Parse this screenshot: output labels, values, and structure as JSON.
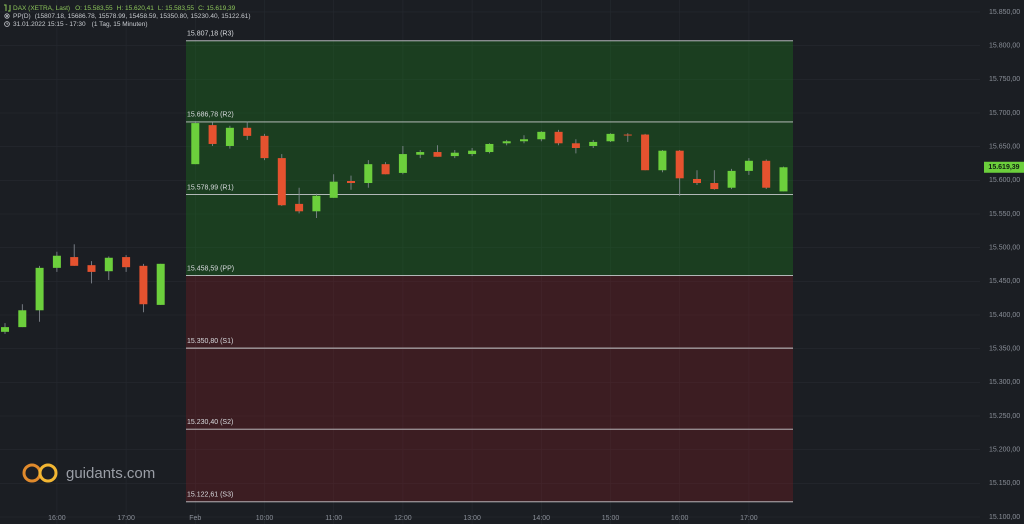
{
  "chart_data": {
    "type": "candlestick",
    "title": "DAX (XETRA, Last)",
    "ohlc": [
      "O: 15.583,55",
      "H: 15.620,41",
      "L: 15.583,55",
      "C: 15.619,39"
    ],
    "indicator": "PP(D)",
    "indicator_values": "(15807.18, 15686.78, 15578.99, 15458.59, 15350.80, 15230.40, 15122.61)",
    "period": "31.01.2022 15:15 - 17:30",
    "interval": "(1 Tag, 15 Minuten)",
    "watermark": "guidants.com",
    "categories": [
      null,
      null,
      null,
      "16:00",
      null,
      null,
      null,
      "17:00",
      null,
      null,
      "Feb",
      null,
      null,
      null,
      "10:00",
      null,
      null,
      null,
      "11:00",
      null,
      null,
      null,
      "12:00",
      null,
      null,
      null,
      "13:00",
      null,
      null,
      null,
      "14:00",
      null,
      null,
      null,
      "15:00",
      null,
      null,
      null,
      "16:00",
      null,
      null,
      null,
      "17:00",
      null,
      null
    ],
    "open": [
      15375,
      15382,
      15407,
      15470,
      15486,
      15474,
      15465,
      15486,
      15473,
      15415,
      15624,
      15682,
      15651,
      15678,
      15666,
      15633,
      15565,
      15554,
      15574,
      15599,
      15596,
      15624,
      15611,
      15638,
      15642,
      15636,
      15639,
      15642,
      15655,
      15658,
      15661,
      15672,
      15655,
      15651,
      15658,
      15668,
      15668,
      15615,
      15644,
      15602,
      15596,
      15589,
      15614,
      15629,
      15583.55
    ],
    "high": [
      15388,
      15416,
      15473,
      15494,
      15505,
      15480,
      15487,
      15489,
      15476,
      15476,
      15688,
      15686,
      15681,
      15687,
      15669,
      15639,
      15589,
      15580,
      15609,
      15607,
      15630,
      15627,
      15651,
      15645,
      15652,
      15645,
      15648,
      15655,
      15660,
      15667,
      15673,
      15675,
      15661,
      15660,
      15670,
      15670,
      15669,
      15645,
      15645,
      15615,
      15615,
      15617,
      15633,
      15631,
      15620.41
    ],
    "low": [
      15372,
      15382,
      15390,
      15464,
      15473,
      15447,
      15452,
      15464,
      15404,
      15415,
      15624,
      15651,
      15647,
      15660,
      15630,
      15562,
      15551,
      15544,
      15574,
      15586,
      15589,
      15609,
      15609,
      15633,
      15635,
      15633,
      15636,
      15640,
      15652,
      15655,
      15658,
      15652,
      15640,
      15648,
      15657,
      15657,
      15615,
      15612,
      15577,
      15593,
      15586,
      15587,
      15608,
      15587,
      15583.55
    ],
    "close": [
      15382,
      15407,
      15470,
      15488,
      15473,
      15464,
      15485,
      15471,
      15416,
      15476,
      15685,
      15654,
      15678,
      15666,
      15633,
      15563,
      15554,
      15577,
      15598,
      15596,
      15624,
      15609,
      15639,
      15642,
      15635,
      15641,
      15644,
      15654,
      15658,
      15661,
      15672,
      15655,
      15648,
      15657,
      15669,
      15667,
      15615,
      15644,
      15603,
      15596,
      15587,
      15614,
      15629,
      15589,
      15619.39
    ],
    "up_color": "#6ccf3c",
    "down_color": "#e5522f",
    "levels": [
      {
        "value": 15807.18,
        "label": "15.807,18 (R3)"
      },
      {
        "value": 15686.78,
        "label": "15.686,78 (R2)"
      },
      {
        "value": 15578.99,
        "label": "15.578,99 (R1)"
      },
      {
        "value": 15458.59,
        "label": "15.458,59 (PP)"
      },
      {
        "value": 15350.8,
        "label": "15.350,80 (S1)"
      },
      {
        "value": 15230.4,
        "label": "15.230,40 (S2)"
      },
      {
        "value": 15122.61,
        "label": "15.122,61 (S3)"
      }
    ],
    "last_price": {
      "value": 15619.39,
      "label": "15.619,39"
    },
    "ylim": [
      15089.6,
      15867.8
    ],
    "yticks": [
      {
        "value": 15100,
        "label": "15.100,00"
      },
      {
        "value": 15150,
        "label": "15.150,00"
      },
      {
        "value": 15200,
        "label": "15.200,00"
      },
      {
        "value": 15250,
        "label": "15.250,00"
      },
      {
        "value": 15300,
        "label": "15.300,00"
      },
      {
        "value": 15350,
        "label": "15.350,00"
      },
      {
        "value": 15400,
        "label": "15.400,00"
      },
      {
        "value": 15450,
        "label": "15.450,00"
      },
      {
        "value": 15500,
        "label": "15.500,00"
      },
      {
        "value": 15550,
        "label": "15.550,00"
      },
      {
        "value": 15600,
        "label": "15.600,00"
      },
      {
        "value": 15650,
        "label": "15.650,00"
      },
      {
        "value": 15700,
        "label": "15.700,00"
      },
      {
        "value": 15750,
        "label": "15.750,00"
      },
      {
        "value": 15800,
        "label": "15.800,00"
      },
      {
        "value": 15850,
        "label": "15.850,00"
      }
    ],
    "grid": true
  }
}
